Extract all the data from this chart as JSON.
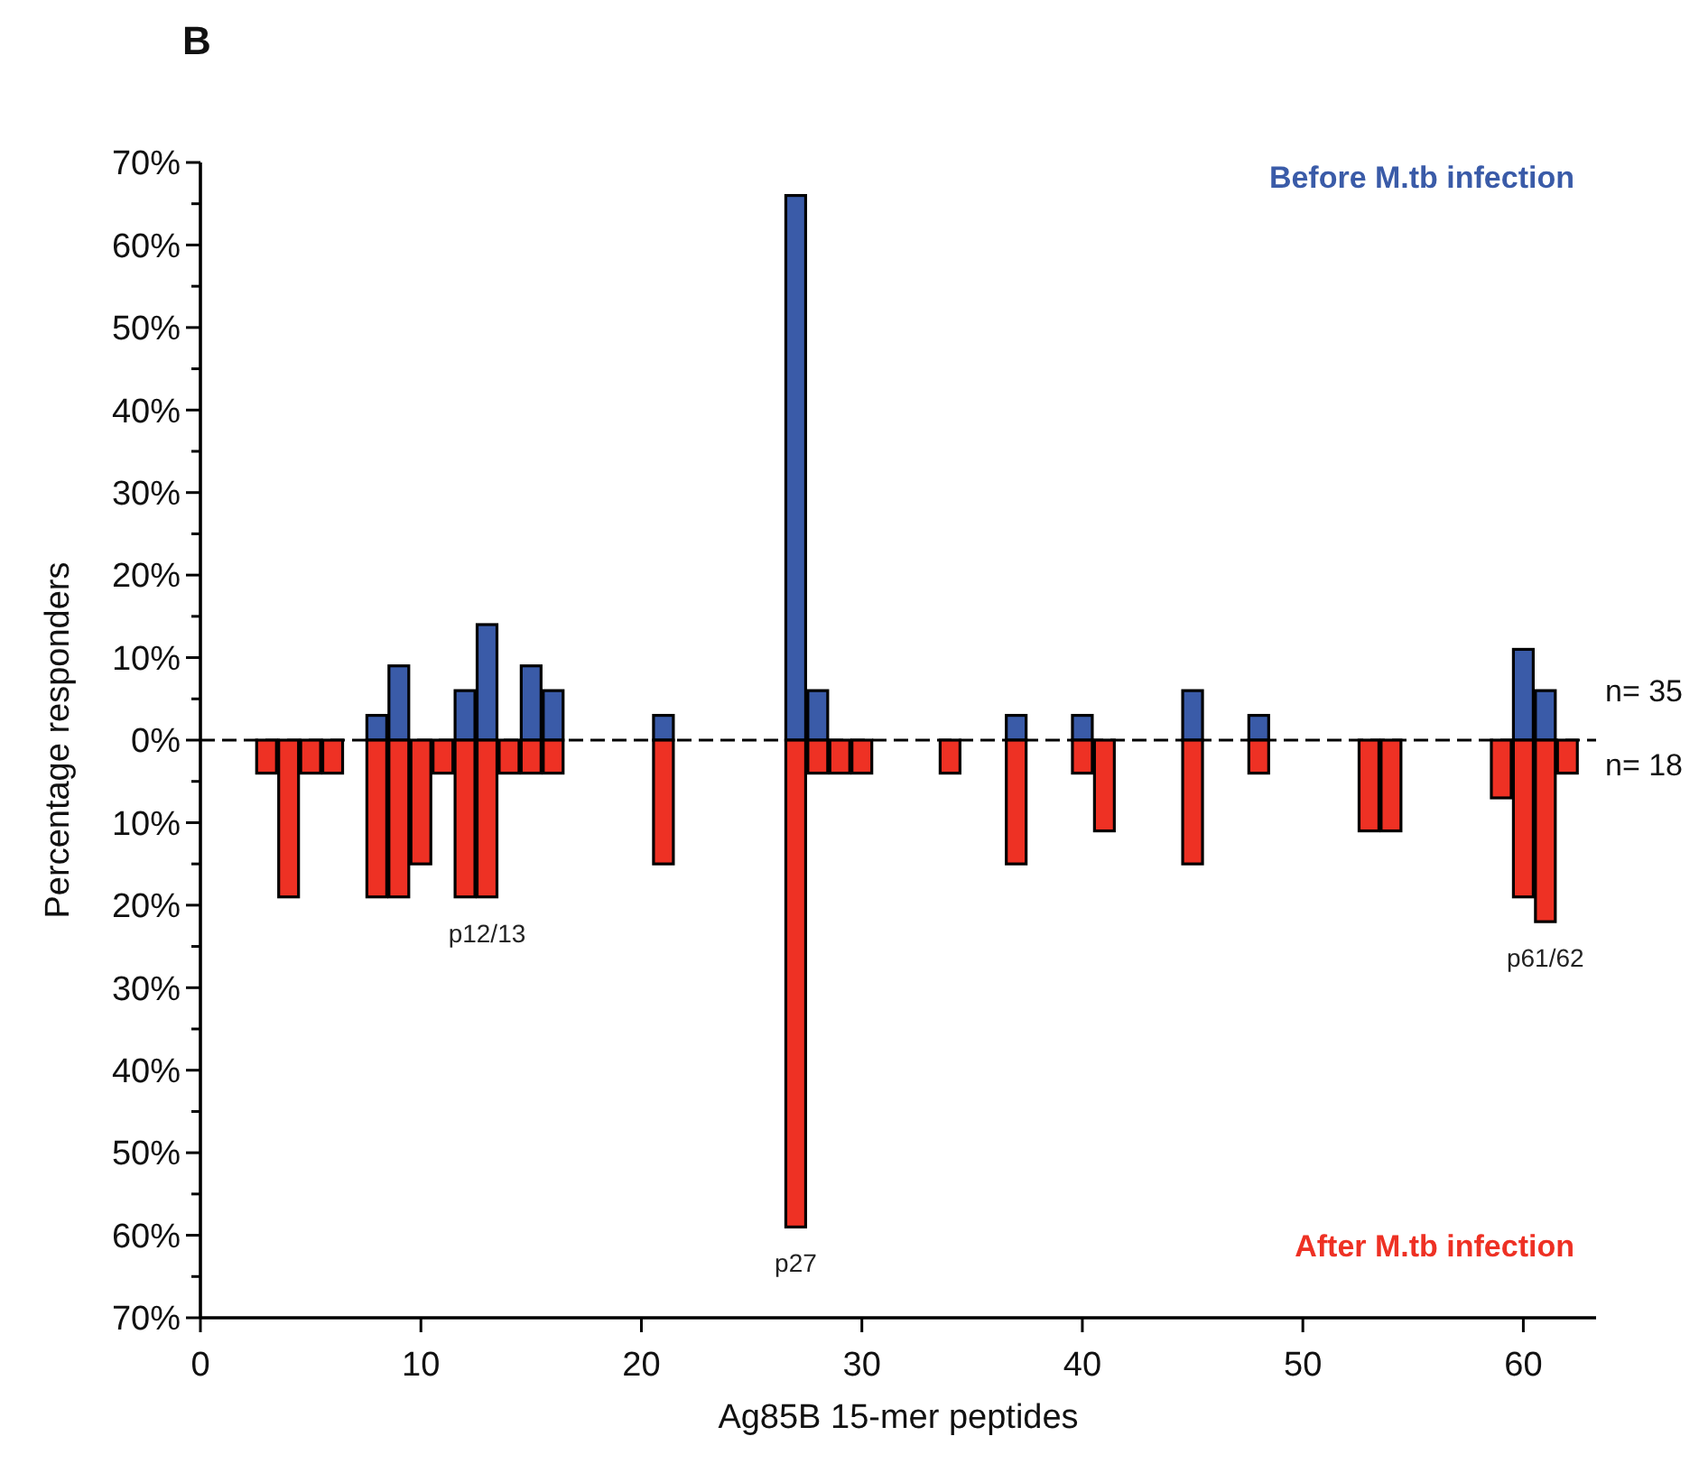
{
  "chart_data": {
    "type": "bar",
    "title": "B",
    "xlabel": "Ag85B 15-mer peptides",
    "ylabel": "Percentage responders",
    "x": [
      3,
      4,
      5,
      6,
      8,
      9,
      10,
      11,
      12,
      13,
      14,
      15,
      16,
      21,
      27,
      28,
      29,
      30,
      34,
      37,
      40,
      41,
      45,
      48,
      53,
      54,
      59,
      60,
      61,
      62
    ],
    "series": [
      {
        "name": "Before M.tb infection",
        "color": "#3a5ba8",
        "values": [
          null,
          null,
          null,
          null,
          3,
          9,
          null,
          null,
          6,
          14,
          null,
          9,
          6,
          3,
          66,
          6,
          null,
          null,
          null,
          3,
          3,
          null,
          6,
          3,
          null,
          null,
          null,
          11,
          6,
          null
        ]
      },
      {
        "name": "After M.tb infection",
        "color": "#ee3124",
        "values": [
          -4,
          -19,
          -4,
          -4,
          -19,
          -19,
          -15,
          -4,
          -19,
          -19,
          -4,
          -4,
          -4,
          -15,
          -59,
          -4,
          -4,
          -4,
          -4,
          -15,
          -4,
          -11,
          -15,
          -4,
          -11,
          -11,
          -7,
          -19,
          -22,
          -4
        ]
      }
    ],
    "xlim": [
      0,
      63.3
    ],
    "xticks": [
      0,
      10,
      20,
      30,
      40,
      50,
      60
    ],
    "ylim": [
      -70,
      70
    ],
    "yticks": [
      {
        "value": -70,
        "label": "70%"
      },
      {
        "value": -65,
        "label": null
      },
      {
        "value": -60,
        "label": "60%"
      },
      {
        "value": -55,
        "label": null
      },
      {
        "value": -50,
        "label": "50%"
      },
      {
        "value": -45,
        "label": null
      },
      {
        "value": -40,
        "label": "40%"
      },
      {
        "value": -35,
        "label": null
      },
      {
        "value": -30,
        "label": "30%"
      },
      {
        "value": -25,
        "label": null
      },
      {
        "value": -20,
        "label": "20%"
      },
      {
        "value": -15,
        "label": null
      },
      {
        "value": -10,
        "label": "10%"
      },
      {
        "value": -5,
        "label": null
      },
      {
        "value": 0,
        "label": "0%"
      },
      {
        "value": 5,
        "label": null
      },
      {
        "value": 10,
        "label": "10%"
      },
      {
        "value": 15,
        "label": null
      },
      {
        "value": 20,
        "label": "20%"
      },
      {
        "value": 25,
        "label": null
      },
      {
        "value": 30,
        "label": "30%"
      },
      {
        "value": 35,
        "label": null
      },
      {
        "value": 40,
        "label": "40%"
      },
      {
        "value": 45,
        "label": null
      },
      {
        "value": 50,
        "label": "50%"
      },
      {
        "value": 55,
        "label": null
      },
      {
        "value": 60,
        "label": "60%"
      },
      {
        "value": 65,
        "label": null
      },
      {
        "value": 70,
        "label": "70%"
      }
    ],
    "ref_lines": [
      {
        "axis": "y",
        "value": 0,
        "color": "#000000",
        "line_style": "dashed"
      }
    ],
    "annotations": [
      {
        "text": "p12/13",
        "x": 13,
        "y": -19
      },
      {
        "text": "p27",
        "x": 27,
        "y": -59
      },
      {
        "text": "p61/62",
        "x": 61,
        "y": -22
      },
      "n= 35",
      "n= 18"
    ],
    "stacked": true,
    "legend": "right",
    "grid": false
  }
}
